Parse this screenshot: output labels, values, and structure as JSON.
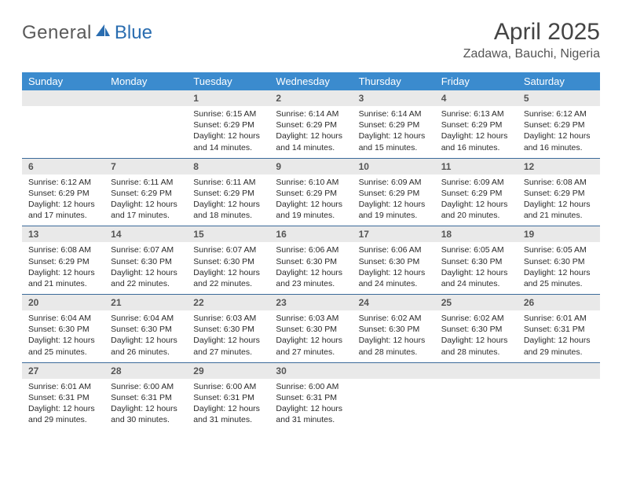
{
  "logo": {
    "text1": "General",
    "text2": "Blue"
  },
  "title": "April 2025",
  "location": "Zadawa, Bauchi, Nigeria",
  "colors": {
    "header_bg": "#3b8bce",
    "header_fg": "#ffffff",
    "week_divider": "#3b6a9a",
    "daynum_bg": "#e9e9e9",
    "logo_gray": "#5a5a5a",
    "logo_blue": "#2a6db0"
  },
  "weekdays": [
    "Sunday",
    "Monday",
    "Tuesday",
    "Wednesday",
    "Thursday",
    "Friday",
    "Saturday"
  ],
  "weeks": [
    [
      null,
      null,
      {
        "n": "1",
        "sr": "6:15 AM",
        "ss": "6:29 PM",
        "dl": "12 hours and 14 minutes."
      },
      {
        "n": "2",
        "sr": "6:14 AM",
        "ss": "6:29 PM",
        "dl": "12 hours and 14 minutes."
      },
      {
        "n": "3",
        "sr": "6:14 AM",
        "ss": "6:29 PM",
        "dl": "12 hours and 15 minutes."
      },
      {
        "n": "4",
        "sr": "6:13 AM",
        "ss": "6:29 PM",
        "dl": "12 hours and 16 minutes."
      },
      {
        "n": "5",
        "sr": "6:12 AM",
        "ss": "6:29 PM",
        "dl": "12 hours and 16 minutes."
      }
    ],
    [
      {
        "n": "6",
        "sr": "6:12 AM",
        "ss": "6:29 PM",
        "dl": "12 hours and 17 minutes."
      },
      {
        "n": "7",
        "sr": "6:11 AM",
        "ss": "6:29 PM",
        "dl": "12 hours and 17 minutes."
      },
      {
        "n": "8",
        "sr": "6:11 AM",
        "ss": "6:29 PM",
        "dl": "12 hours and 18 minutes."
      },
      {
        "n": "9",
        "sr": "6:10 AM",
        "ss": "6:29 PM",
        "dl": "12 hours and 19 minutes."
      },
      {
        "n": "10",
        "sr": "6:09 AM",
        "ss": "6:29 PM",
        "dl": "12 hours and 19 minutes."
      },
      {
        "n": "11",
        "sr": "6:09 AM",
        "ss": "6:29 PM",
        "dl": "12 hours and 20 minutes."
      },
      {
        "n": "12",
        "sr": "6:08 AM",
        "ss": "6:29 PM",
        "dl": "12 hours and 21 minutes."
      }
    ],
    [
      {
        "n": "13",
        "sr": "6:08 AM",
        "ss": "6:29 PM",
        "dl": "12 hours and 21 minutes."
      },
      {
        "n": "14",
        "sr": "6:07 AM",
        "ss": "6:30 PM",
        "dl": "12 hours and 22 minutes."
      },
      {
        "n": "15",
        "sr": "6:07 AM",
        "ss": "6:30 PM",
        "dl": "12 hours and 22 minutes."
      },
      {
        "n": "16",
        "sr": "6:06 AM",
        "ss": "6:30 PM",
        "dl": "12 hours and 23 minutes."
      },
      {
        "n": "17",
        "sr": "6:06 AM",
        "ss": "6:30 PM",
        "dl": "12 hours and 24 minutes."
      },
      {
        "n": "18",
        "sr": "6:05 AM",
        "ss": "6:30 PM",
        "dl": "12 hours and 24 minutes."
      },
      {
        "n": "19",
        "sr": "6:05 AM",
        "ss": "6:30 PM",
        "dl": "12 hours and 25 minutes."
      }
    ],
    [
      {
        "n": "20",
        "sr": "6:04 AM",
        "ss": "6:30 PM",
        "dl": "12 hours and 25 minutes."
      },
      {
        "n": "21",
        "sr": "6:04 AM",
        "ss": "6:30 PM",
        "dl": "12 hours and 26 minutes."
      },
      {
        "n": "22",
        "sr": "6:03 AM",
        "ss": "6:30 PM",
        "dl": "12 hours and 27 minutes."
      },
      {
        "n": "23",
        "sr": "6:03 AM",
        "ss": "6:30 PM",
        "dl": "12 hours and 27 minutes."
      },
      {
        "n": "24",
        "sr": "6:02 AM",
        "ss": "6:30 PM",
        "dl": "12 hours and 28 minutes."
      },
      {
        "n": "25",
        "sr": "6:02 AM",
        "ss": "6:30 PM",
        "dl": "12 hours and 28 minutes."
      },
      {
        "n": "26",
        "sr": "6:01 AM",
        "ss": "6:31 PM",
        "dl": "12 hours and 29 minutes."
      }
    ],
    [
      {
        "n": "27",
        "sr": "6:01 AM",
        "ss": "6:31 PM",
        "dl": "12 hours and 29 minutes."
      },
      {
        "n": "28",
        "sr": "6:00 AM",
        "ss": "6:31 PM",
        "dl": "12 hours and 30 minutes."
      },
      {
        "n": "29",
        "sr": "6:00 AM",
        "ss": "6:31 PM",
        "dl": "12 hours and 31 minutes."
      },
      {
        "n": "30",
        "sr": "6:00 AM",
        "ss": "6:31 PM",
        "dl": "12 hours and 31 minutes."
      },
      null,
      null,
      null
    ]
  ],
  "labels": {
    "sunrise": "Sunrise:",
    "sunset": "Sunset:",
    "daylight": "Daylight:"
  }
}
